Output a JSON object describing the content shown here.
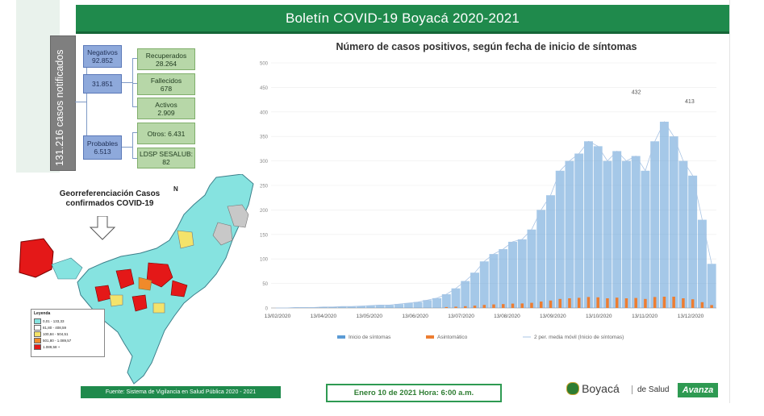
{
  "header": {
    "title": "Boletín COVID-19 Boyacá 2020-2021"
  },
  "summary": {
    "total": "131.216  casos notificados",
    "negativos_label": "Negativos",
    "negativos_value": "92.852",
    "confirmados_value": "31.851",
    "probables_label": "Probables",
    "probables_value": "6.513",
    "recuperados_label": "Recuperados",
    "recuperados_value": "28.264",
    "fallecidos_label": "Fallecidos",
    "fallecidos_value": "678",
    "activos_label": "Activos",
    "activos_value": "2.909",
    "otros_label": "Otros: 6.431",
    "ldsp_label": "LDSP SESALUB: 82"
  },
  "map": {
    "title": "Georreferenciación Casos confirmados COVID-19",
    "north_label": "N",
    "legend_title": "Leyenda",
    "legend_items": [
      {
        "label": "0,01 - 133,33",
        "color": "#86e3e0"
      },
      {
        "label": "81,80 - 408,59",
        "color": "#ffffff"
      },
      {
        "label": "100,84 - 504,51",
        "color": "#f4e36a"
      },
      {
        "label": "501,80 - 1.089,57",
        "color": "#f08a2a"
      },
      {
        "label": "1.089,58 +",
        "color": "#e41818"
      }
    ]
  },
  "chart_data": {
    "type": "bar",
    "title": "Número de casos positivos, según fecha de inicio de síntomas",
    "ylim": [
      0,
      500
    ],
    "yticks": [
      "0",
      "50",
      "100",
      "150",
      "200",
      "250",
      "300",
      "350",
      "400",
      "450",
      "500"
    ],
    "x_tick_labels": [
      "13/02/2020",
      "13/04/2020",
      "13/05/2020",
      "13/06/2020",
      "13/07/2020",
      "13/08/2020",
      "13/09/2020",
      "13/10/2020",
      "13/11/2020",
      "13/12/2020"
    ],
    "series": [
      {
        "name": "Inicio de síntomas",
        "color": "#5b9bd5"
      },
      {
        "name": "Asintomático",
        "color": "#ed7d31"
      },
      {
        "name": "2 per. media móvil (Inicio de síntomas)",
        "color": "#a9c4e4"
      }
    ],
    "weekly_values": [
      0,
      0,
      1,
      1,
      1,
      2,
      2,
      3,
      3,
      4,
      5,
      6,
      6,
      8,
      10,
      12,
      16,
      20,
      28,
      40,
      55,
      72,
      95,
      110,
      120,
      135,
      140,
      160,
      200,
      230,
      280,
      300,
      315,
      340,
      330,
      300,
      320,
      300,
      310,
      280,
      340,
      380,
      350,
      300,
      270,
      180,
      90
    ],
    "annotations": [
      {
        "label": "432"
      },
      {
        "label": "413"
      }
    ]
  },
  "footer": {
    "source": "Fuente: Sistema de Vigilancia en Salud Pública 2020 - 2021",
    "date": "Enero 10 de 2021   Hora: 6:00 a.m."
  },
  "logos": {
    "boyaca": "Boyacá",
    "secretaria": "de Salud",
    "avanza": "Avanza"
  }
}
